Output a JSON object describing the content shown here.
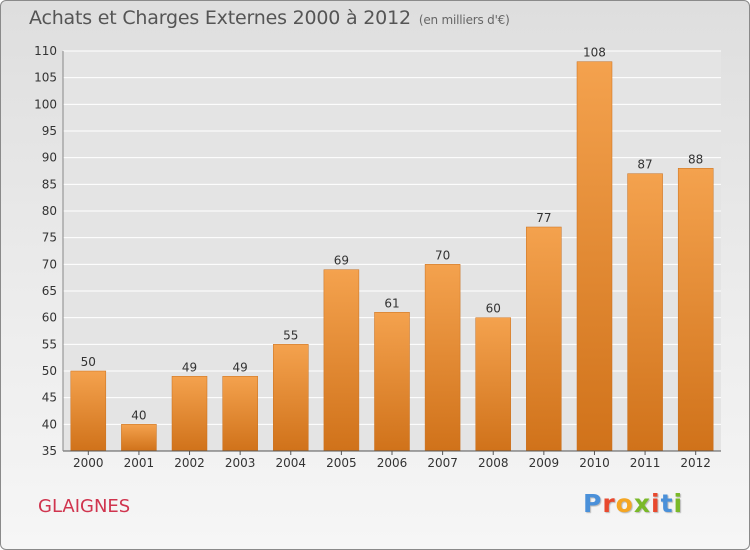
{
  "header": {
    "title": "Achats et Charges Externes 2000 à 2012",
    "unit": "(en milliers d'€)"
  },
  "footer": {
    "commune": "GLAIGNES",
    "logo_text": "Proxiti",
    "logo_colors": [
      "#4a90d9",
      "#e8492e",
      "#f5a623",
      "#7ab929",
      "#e8492e",
      "#4a90d9",
      "#7ab929"
    ]
  },
  "colors": {
    "bar_top": "#f4a24e",
    "bar_bottom": "#d0721a",
    "grid": "#ffffff",
    "text": "#333333"
  },
  "chart_data": {
    "type": "bar",
    "title": "Achats et Charges Externes 2000 à 2012",
    "subtitle": "(en milliers d'€)",
    "categories": [
      "2000",
      "2001",
      "2002",
      "2003",
      "2004",
      "2005",
      "2006",
      "2007",
      "2008",
      "2009",
      "2010",
      "2011",
      "2012"
    ],
    "values": [
      50,
      40,
      49,
      49,
      55,
      69,
      61,
      70,
      60,
      77,
      108,
      87,
      88
    ],
    "xlabel": "",
    "ylabel": "",
    "ylim": [
      35,
      110
    ],
    "yticks": [
      35,
      40,
      45,
      50,
      55,
      60,
      65,
      70,
      75,
      80,
      85,
      90,
      95,
      100,
      105,
      110
    ],
    "grid": true,
    "data_labels": true
  }
}
